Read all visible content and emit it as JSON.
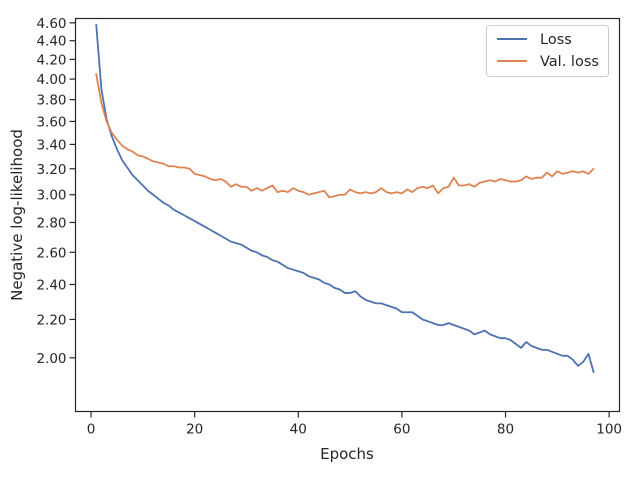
{
  "chart_data": {
    "type": "line",
    "xlabel": "Epochs",
    "ylabel": "Negative log-likelihood",
    "xlim": [
      -3,
      102
    ],
    "ylim": [
      1.75,
      4.65
    ],
    "y_scale": "log",
    "grid": false,
    "legend_position": "top-right",
    "x_ticks": [
      0,
      20,
      40,
      60,
      80,
      100
    ],
    "x_tick_labels": [
      "0",
      "20",
      "40",
      "60",
      "80",
      "100"
    ],
    "y_ticks": [
      2.0,
      2.2,
      2.4,
      2.6,
      2.8,
      3.0,
      3.2,
      3.4,
      3.6,
      3.8,
      4.0,
      4.2,
      4.4,
      4.6
    ],
    "y_tick_labels": [
      "2.00",
      "2.20",
      "2.40",
      "2.60",
      "2.80",
      "3.00",
      "3.20",
      "3.40",
      "3.60",
      "3.80",
      "4.00",
      "4.20",
      "4.40",
      "4.60"
    ],
    "series": [
      {
        "name": "Loss",
        "color": "#4c72b0",
        "x": [
          1,
          2,
          3,
          4,
          5,
          6,
          7,
          8,
          9,
          10,
          11,
          12,
          13,
          14,
          15,
          16,
          17,
          18,
          19,
          20,
          21,
          22,
          23,
          24,
          25,
          26,
          27,
          28,
          29,
          30,
          31,
          32,
          33,
          34,
          35,
          36,
          37,
          38,
          39,
          40,
          41,
          42,
          43,
          44,
          45,
          46,
          47,
          48,
          49,
          50,
          51,
          52,
          53,
          54,
          55,
          56,
          57,
          58,
          59,
          60,
          61,
          62,
          63,
          64,
          65,
          66,
          67,
          68,
          69,
          70,
          71,
          72,
          73,
          74,
          75,
          76,
          77,
          78,
          79,
          80,
          81,
          82,
          83,
          84,
          85,
          86,
          87,
          88,
          89,
          90,
          91,
          92,
          93,
          94,
          95,
          96,
          97
        ],
        "values": [
          4.58,
          3.9,
          3.62,
          3.47,
          3.36,
          3.27,
          3.21,
          3.15,
          3.11,
          3.07,
          3.03,
          3.0,
          2.97,
          2.94,
          2.92,
          2.89,
          2.87,
          2.85,
          2.83,
          2.81,
          2.79,
          2.77,
          2.75,
          2.73,
          2.71,
          2.69,
          2.67,
          2.66,
          2.65,
          2.63,
          2.61,
          2.6,
          2.58,
          2.57,
          2.55,
          2.54,
          2.52,
          2.5,
          2.49,
          2.48,
          2.47,
          2.45,
          2.44,
          2.43,
          2.41,
          2.4,
          2.38,
          2.37,
          2.35,
          2.35,
          2.36,
          2.33,
          2.31,
          2.3,
          2.29,
          2.29,
          2.28,
          2.27,
          2.26,
          2.24,
          2.24,
          2.24,
          2.22,
          2.2,
          2.19,
          2.18,
          2.17,
          2.17,
          2.18,
          2.17,
          2.16,
          2.15,
          2.14,
          2.12,
          2.13,
          2.14,
          2.12,
          2.11,
          2.1,
          2.1,
          2.09,
          2.07,
          2.05,
          2.08,
          2.06,
          2.05,
          2.04,
          2.04,
          2.03,
          2.02,
          2.01,
          2.01,
          1.99,
          1.96,
          1.98,
          2.02,
          1.93
        ]
      },
      {
        "name": "Val. loss",
        "color": "#dd8452",
        "x": [
          1,
          2,
          3,
          4,
          5,
          6,
          7,
          8,
          9,
          10,
          11,
          12,
          13,
          14,
          15,
          16,
          17,
          18,
          19,
          20,
          21,
          22,
          23,
          24,
          25,
          26,
          27,
          28,
          29,
          30,
          31,
          32,
          33,
          34,
          35,
          36,
          37,
          38,
          39,
          40,
          41,
          42,
          43,
          44,
          45,
          46,
          47,
          48,
          49,
          50,
          51,
          52,
          53,
          54,
          55,
          56,
          57,
          58,
          59,
          60,
          61,
          62,
          63,
          64,
          65,
          66,
          67,
          68,
          69,
          70,
          71,
          72,
          73,
          74,
          75,
          76,
          77,
          78,
          79,
          80,
          81,
          82,
          83,
          84,
          85,
          86,
          87,
          88,
          89,
          90,
          91,
          92,
          93,
          94,
          95,
          96,
          97
        ],
        "values": [
          4.05,
          3.77,
          3.6,
          3.5,
          3.44,
          3.39,
          3.36,
          3.34,
          3.31,
          3.3,
          3.28,
          3.26,
          3.25,
          3.24,
          3.22,
          3.22,
          3.21,
          3.21,
          3.2,
          3.16,
          3.15,
          3.14,
          3.12,
          3.11,
          3.12,
          3.1,
          3.06,
          3.08,
          3.06,
          3.06,
          3.03,
          3.05,
          3.03,
          3.05,
          3.07,
          3.02,
          3.03,
          3.02,
          3.05,
          3.03,
          3.02,
          3.0,
          3.01,
          3.02,
          3.03,
          2.98,
          2.99,
          3.0,
          3.0,
          3.04,
          3.02,
          3.01,
          3.02,
          3.01,
          3.02,
          3.05,
          3.02,
          3.01,
          3.02,
          3.01,
          3.04,
          3.02,
          3.05,
          3.06,
          3.05,
          3.07,
          3.01,
          3.05,
          3.06,
          3.13,
          3.07,
          3.07,
          3.08,
          3.06,
          3.09,
          3.1,
          3.11,
          3.1,
          3.12,
          3.11,
          3.1,
          3.1,
          3.11,
          3.14,
          3.12,
          3.13,
          3.13,
          3.17,
          3.14,
          3.18,
          3.16,
          3.17,
          3.18,
          3.17,
          3.18,
          3.16,
          3.2
        ]
      }
    ]
  }
}
